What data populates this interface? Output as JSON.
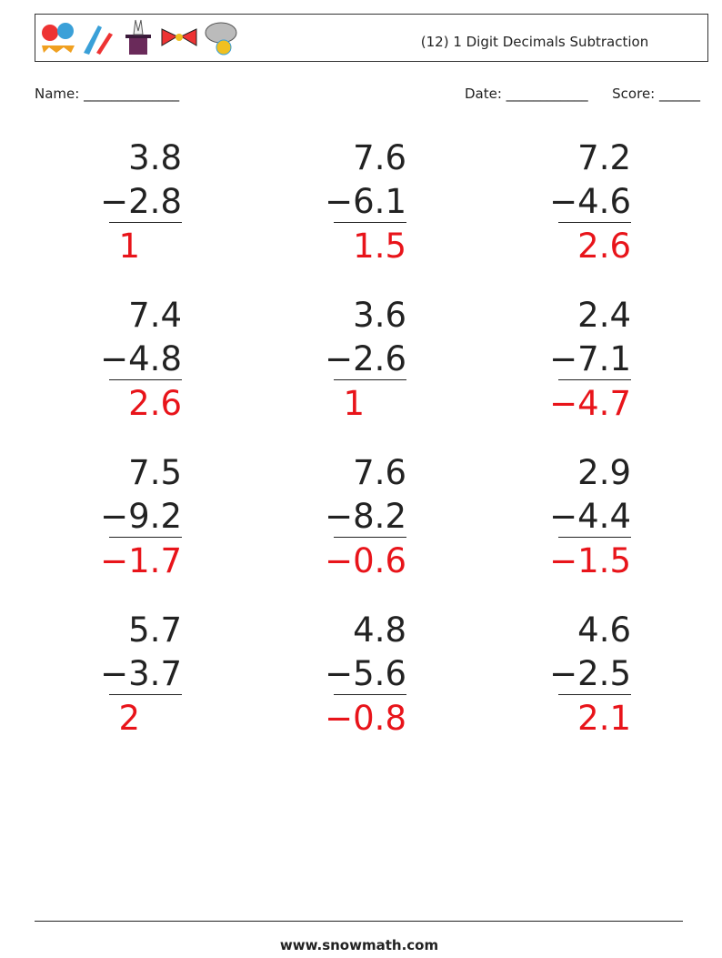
{
  "header": {
    "title": "(12) 1 Digit Decimals Subtraction"
  },
  "fields": {
    "name": "Name: ______________",
    "date": "Date: ____________",
    "score": "Score: ______"
  },
  "problems": [
    {
      "top": "3.8",
      "bottom": "−2.8",
      "answer": "1"
    },
    {
      "top": "7.6",
      "bottom": "−6.1",
      "answer": "1.5"
    },
    {
      "top": "7.2",
      "bottom": "−4.6",
      "answer": "2.6"
    },
    {
      "top": "7.4",
      "bottom": "−4.8",
      "answer": "2.6"
    },
    {
      "top": "3.6",
      "bottom": "−2.6",
      "answer": "1"
    },
    {
      "top": "2.4",
      "bottom": "−7.1",
      "answer": "−4.7"
    },
    {
      "top": "7.5",
      "bottom": "−9.2",
      "answer": "−1.7"
    },
    {
      "top": "7.6",
      "bottom": "−8.2",
      "answer": "−0.6"
    },
    {
      "top": "2.9",
      "bottom": "−4.4",
      "answer": "−1.5"
    },
    {
      "top": "5.7",
      "bottom": "−3.7",
      "answer": "2"
    },
    {
      "top": "4.8",
      "bottom": "−5.6",
      "answer": "−0.8"
    },
    {
      "top": "4.6",
      "bottom": "−2.5",
      "answer": "2.1"
    }
  ],
  "footer": {
    "site": "www.snowmath.com"
  }
}
